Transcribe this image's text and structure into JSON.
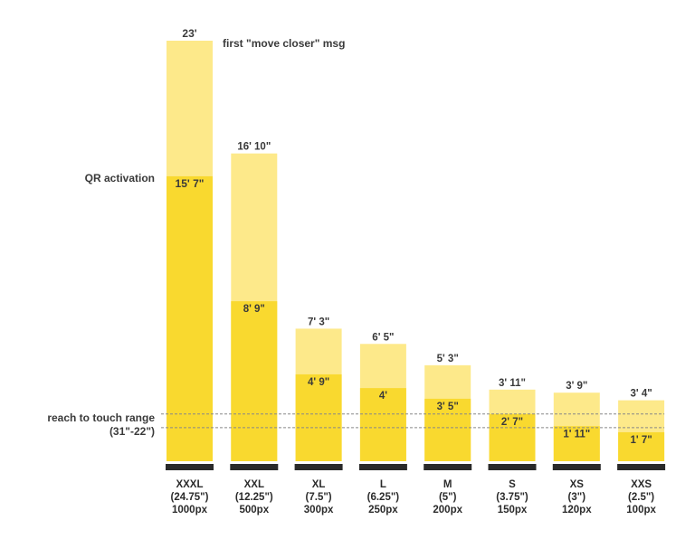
{
  "colors": {
    "outer_bar": "#fde98a",
    "inner_bar": "#f9d92f",
    "base": "#2a2a2a",
    "text": "#3a3a3a",
    "guide_line": "#888888"
  },
  "annotations": {
    "first_msg": "first \"move closer\" msg",
    "qr_activation": "QR activation",
    "reach_line1": "reach to touch range",
    "reach_line2": "(31\"-22\")"
  },
  "chart_data": {
    "type": "bar",
    "ylabel_unit": "inches",
    "ylim": [
      0,
      276
    ],
    "categories": [
      "XXXL",
      "XXL",
      "XL",
      "L",
      "M",
      "S",
      "XS",
      "XXS"
    ],
    "sizes": [
      "(24.75\")",
      "(12.25\")",
      "(7.5\")",
      "(6.25\")",
      "(5\")",
      "(3.75\")",
      "(3\")",
      "(2.5\")"
    ],
    "px": [
      "1000px",
      "500px",
      "300px",
      "250px",
      "200px",
      "150px",
      "120px",
      "100px"
    ],
    "series": [
      {
        "name": "first \"move closer\" msg",
        "values": [
          276,
          202,
          87,
          77,
          63,
          47,
          45,
          40
        ],
        "labels": [
          "23'",
          "16' 10\"",
          "7' 3\"",
          "6' 5\"",
          "5' 3\"",
          "3' 11\"",
          "3' 9\"",
          "3' 4\""
        ]
      },
      {
        "name": "QR activation",
        "values": [
          187,
          105,
          57,
          48,
          41,
          31,
          23,
          19
        ],
        "labels": [
          "15' 7\"",
          "8' 9\"",
          "4' 9\"",
          "4'",
          "3' 5\"",
          "2' 7\"",
          "1' 11\"",
          "1' 7\""
        ]
      }
    ],
    "reference_range": [
      22,
      31
    ],
    "grid": false
  }
}
